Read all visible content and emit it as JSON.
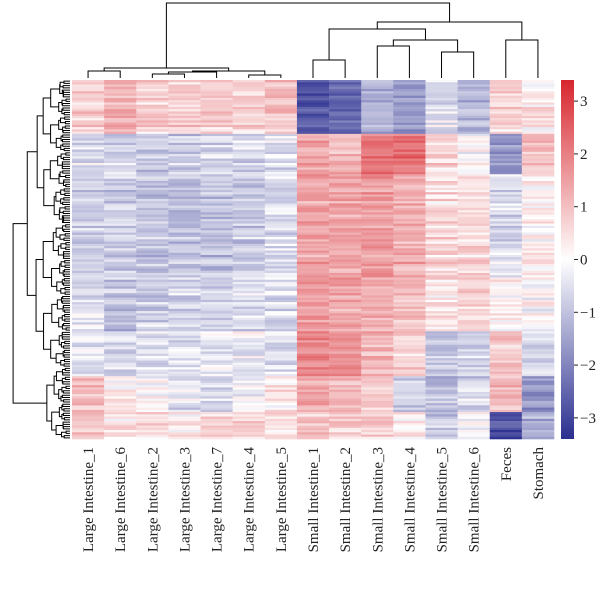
{
  "chart_data": {
    "type": "heatmap",
    "title": "",
    "xlabel": "",
    "ylabel": "",
    "columns": [
      "Large Intestine_1",
      "Large Intestine_6",
      "Large Intestine_2",
      "Large Intestine_3",
      "Large Intestine_7",
      "Large Intestine_4",
      "Large Intestine_5",
      "Small Intestine_1",
      "Small Intestine_2",
      "Small Intestine_3",
      "Small Intestine_4",
      "Small Intestine_5",
      "Small Intestine_6",
      "Feces",
      "Stomach"
    ],
    "color_scale": {
      "min": -3.4,
      "max": 3.4,
      "ticks": [
        3,
        2,
        1,
        0,
        -1,
        -2,
        -3
      ],
      "tick_labels": [
        "3",
        "2",
        "1",
        "0",
        "−1",
        "−2",
        "−3"
      ],
      "low_color": "#2b2f8f",
      "mid_color": "#ffffff",
      "high_color": "#d7262d"
    },
    "row_dendrogram": true,
    "column_dendrogram": true,
    "row_clusters": [
      {
        "rows": 24,
        "values": [
          0.7,
          1.1,
          0.6,
          0.6,
          0.7,
          0.7,
          0.9,
          -2.7,
          -2.4,
          -1.1,
          -1.4,
          -0.4,
          -1.0,
          0.6,
          0.3
        ]
      },
      {
        "rows": 18,
        "values": [
          -0.5,
          -0.7,
          -0.8,
          -0.8,
          -0.6,
          -0.6,
          -0.5,
          1.2,
          1.0,
          2.0,
          2.1,
          0.5,
          0.1,
          -1.6,
          0.8
        ]
      },
      {
        "rows": 46,
        "values": [
          -0.6,
          -0.7,
          -0.8,
          -0.9,
          -0.9,
          -0.7,
          -0.5,
          1.3,
          1.3,
          1.5,
          1.2,
          0.5,
          0.6,
          -0.5,
          0.2
        ]
      },
      {
        "rows": 24,
        "values": [
          -0.4,
          -0.9,
          -0.7,
          -0.6,
          -0.6,
          -0.5,
          -0.5,
          1.4,
          1.3,
          1.1,
          0.9,
          0.3,
          0.5,
          0.2,
          0.0
        ]
      },
      {
        "rows": 20,
        "values": [
          -0.3,
          -0.5,
          -0.4,
          -0.4,
          -0.3,
          -0.2,
          -0.4,
          1.8,
          1.5,
          1.1,
          0.6,
          -0.8,
          -0.6,
          0.8,
          -0.6
        ]
      },
      {
        "rows": 16,
        "values": [
          0.9,
          0.1,
          0.0,
          -0.4,
          -0.6,
          -0.2,
          0.3,
          1.2,
          1.0,
          0.7,
          -0.7,
          -0.9,
          -0.6,
          1.0,
          -1.6
        ]
      },
      {
        "rows": 12,
        "values": [
          0.7,
          0.3,
          0.5,
          0.2,
          0.4,
          0.4,
          0.3,
          0.7,
          0.6,
          0.5,
          0.1,
          -0.8,
          -0.1,
          -2.9,
          -1.2
        ]
      }
    ]
  }
}
